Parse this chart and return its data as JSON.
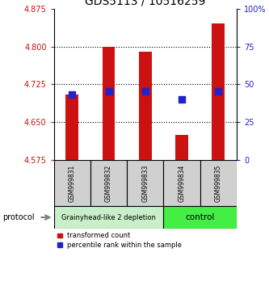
{
  "title": "GDS5113 / 10516259",
  "samples": [
    "GSM999831",
    "GSM999832",
    "GSM999833",
    "GSM999834",
    "GSM999835"
  ],
  "bar_bottoms": [
    4.575,
    4.575,
    4.575,
    4.575,
    4.575
  ],
  "bar_tops": [
    4.705,
    4.8,
    4.79,
    4.625,
    4.845
  ],
  "blue_values": [
    4.705,
    4.712,
    4.712,
    4.695,
    4.712
  ],
  "ylim": [
    4.575,
    4.875
  ],
  "y_ticks": [
    4.575,
    4.65,
    4.725,
    4.8,
    4.875
  ],
  "y_right_ticks": [
    0,
    25,
    50,
    75,
    100
  ],
  "bar_color": "#cc1111",
  "blue_color": "#2222cc",
  "group1_label": "Grainyhead-like 2 depletion",
  "group2_label": "control",
  "group1_color": "#c8f0c8",
  "group2_color": "#44ee44",
  "protocol_label": "protocol",
  "legend1": "transformed count",
  "legend2": "percentile rank within the sample",
  "left_axis_color": "#cc1111",
  "right_axis_color": "#2222cc",
  "sample_box_color": "#d0d0d0",
  "bar_width": 0.35,
  "blue_marker_size": 40,
  "grid_linestyle": "dotted",
  "grid_linewidth": 0.8,
  "title_fontsize": 10,
  "tick_fontsize": 7,
  "label_fontsize": 6,
  "group_fontsize": 6,
  "sample_fontsize": 5.5
}
